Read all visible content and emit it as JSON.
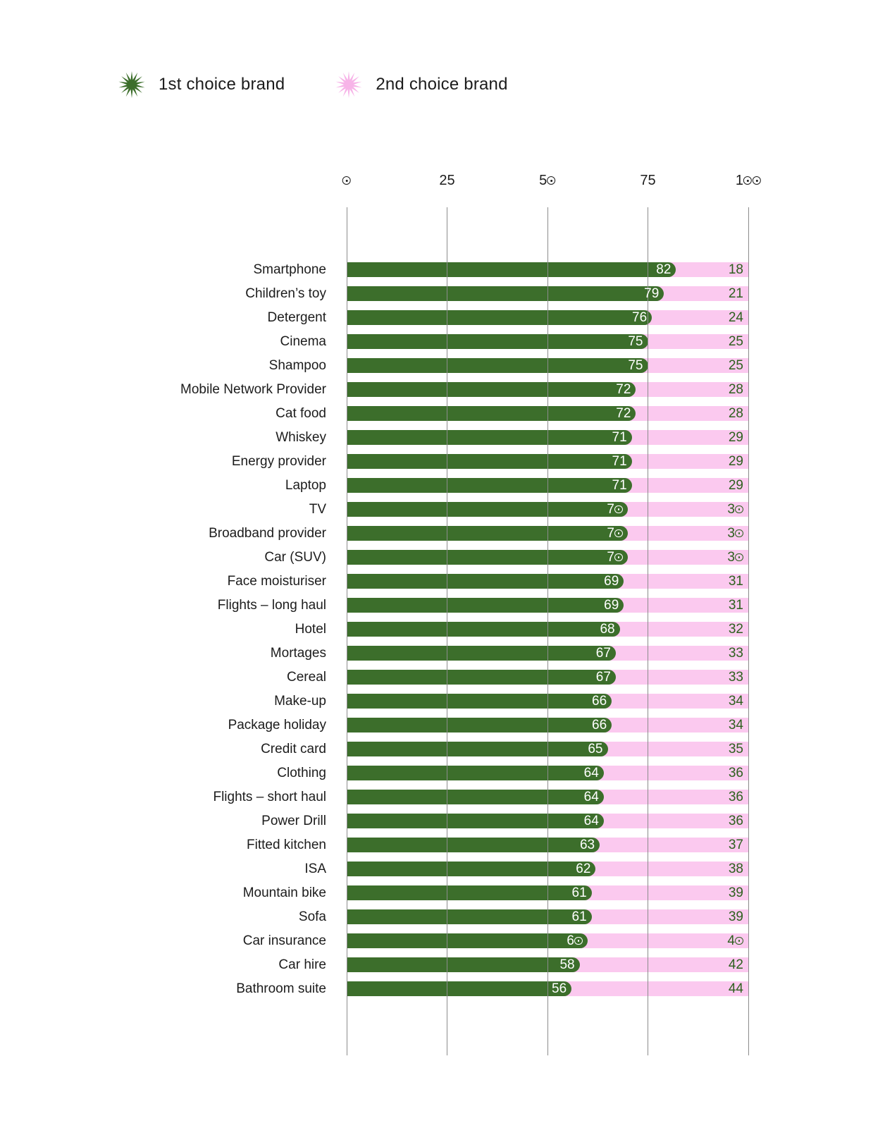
{
  "legend": {
    "first": {
      "label": "1st choice brand"
    },
    "second": {
      "label": "2nd choice brand"
    }
  },
  "colors": {
    "first_choice_green": "#3C6E2B",
    "second_choice_pink": "#FBC9EF",
    "legend_pink_star": "#F7B4E8",
    "value_text_on_green": "#FFFFFF",
    "value_text_on_pink": "#2D601E",
    "gridline": "#8C8C8C"
  },
  "chart_data": {
    "type": "bar",
    "orientation": "horizontal",
    "stacked": true,
    "title": "",
    "xlabel": "",
    "ylabel": "",
    "xlim": [
      0,
      100
    ],
    "x_ticks": [
      0,
      25,
      50,
      75,
      100
    ],
    "grid": "vertical",
    "legend_position": "top-left",
    "categories": [
      "Smartphone",
      "Children’s toy",
      "Detergent",
      "Cinema",
      "Shampoo",
      "Mobile Network Provider",
      "Cat food",
      "Whiskey",
      "Energy provider",
      "Laptop",
      "TV",
      "Broadband provider",
      "Car (SUV)",
      "Face moisturiser",
      "Flights – long haul",
      "Hotel",
      "Mortages",
      "Cereal",
      "Make-up",
      "Package holiday",
      "Credit card",
      "Clothing",
      "Flights – short haul",
      "Power Drill",
      "Fitted kitchen",
      "ISA",
      "Mountain bike",
      "Sofa",
      "Car insurance",
      "Car hire",
      "Bathroom suite"
    ],
    "series": [
      {
        "name": "1st choice brand",
        "color": "#3C6E2B",
        "values": [
          82,
          79,
          76,
          75,
          75,
          72,
          72,
          71,
          71,
          71,
          70,
          70,
          70,
          69,
          69,
          68,
          67,
          67,
          66,
          66,
          65,
          64,
          64,
          64,
          63,
          62,
          61,
          61,
          60,
          58,
          56
        ]
      },
      {
        "name": "2nd choice brand",
        "color": "#FBC9EF",
        "values": [
          18,
          21,
          24,
          25,
          25,
          28,
          28,
          29,
          29,
          29,
          30,
          30,
          30,
          31,
          31,
          32,
          33,
          33,
          34,
          34,
          35,
          36,
          36,
          36,
          37,
          38,
          39,
          39,
          40,
          42,
          44
        ]
      }
    ]
  }
}
